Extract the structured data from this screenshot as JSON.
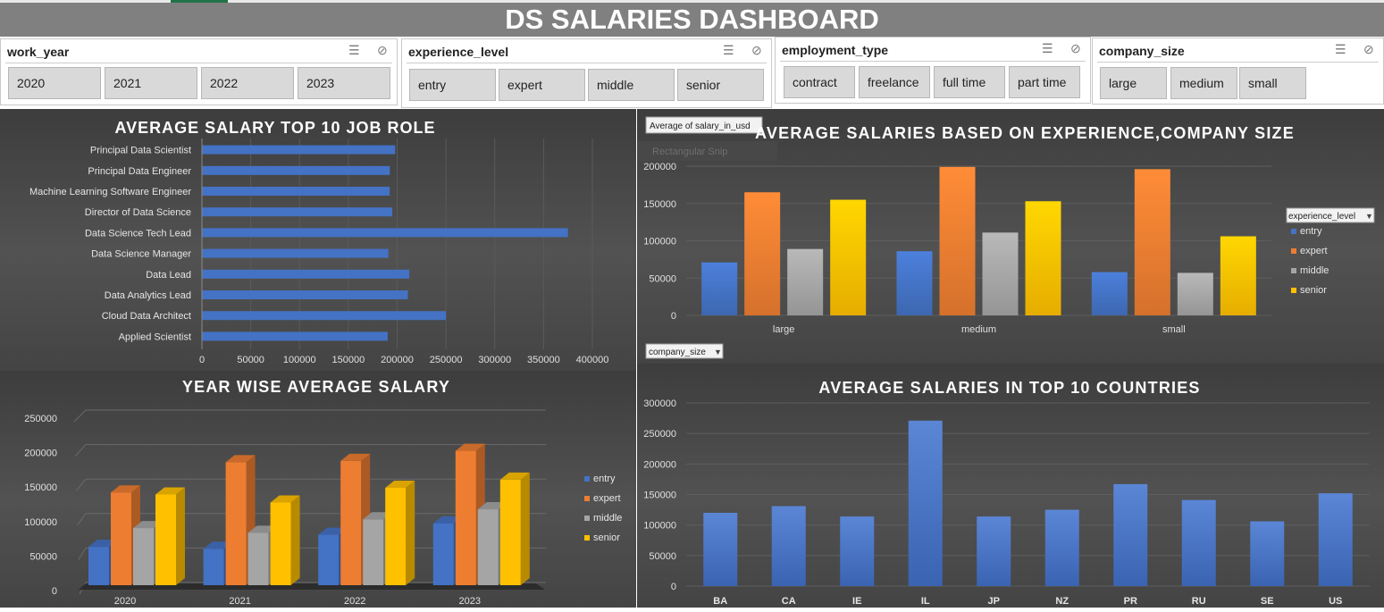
{
  "dashboard_title": "DS SALARIES DASHBOARD",
  "slicers": [
    {
      "name": "work_year",
      "items": [
        "2020",
        "2021",
        "2022",
        "2023"
      ]
    },
    {
      "name": "experience_level",
      "items": [
        "entry",
        "expert",
        "middle",
        "senior"
      ]
    },
    {
      "name": "employment_type",
      "items": [
        "contract",
        "freelance",
        "full time",
        "part time"
      ]
    },
    {
      "name": "company_size",
      "items": [
        "large",
        "medium",
        "small"
      ]
    }
  ],
  "pivot_field_buttons": {
    "values": "Average of salary_in_usd",
    "legend": "experience_level",
    "axis": "company_size"
  },
  "snip_tooltip": "Rectangular Snip",
  "colors": {
    "entry": "#4472c4",
    "expert": "#ed7d31",
    "middle": "#a5a5a5",
    "senior": "#ffc000"
  },
  "chart_data": [
    {
      "type": "bar",
      "orientation": "horizontal",
      "title": "AVERAGE  SALARY TOP 10 JOB ROLE",
      "categories": [
        "Principal Data Scientist",
        "Principal Data Engineer",
        "Machine Learning Software Engineer",
        "Director of Data Science",
        "Data Science Tech Lead",
        "Data Science Manager",
        "Data Lead",
        "Data Analytics Lead",
        "Cloud Data Architect",
        "Applied Scientist"
      ],
      "values": [
        198000,
        192500,
        192400,
        195000,
        375000,
        191000,
        212500,
        211000,
        250000,
        190300
      ],
      "xlim": [
        0,
        400000
      ],
      "xticks": [
        "0",
        "50000",
        "100000",
        "150000",
        "200000",
        "250000",
        "300000",
        "350000",
        "400000"
      ]
    },
    {
      "type": "bar",
      "title": "AVERAGE SALARIES BASED ON EXPERIENCE,COMPANY SIZE",
      "categories": [
        "large",
        "medium",
        "small"
      ],
      "series": [
        {
          "name": "entry",
          "values": [
            71000,
            86000,
            58000
          ]
        },
        {
          "name": "expert",
          "values": [
            165000,
            199000,
            196000
          ]
        },
        {
          "name": "middle",
          "values": [
            89000,
            111000,
            57000
          ]
        },
        {
          "name": "senior",
          "values": [
            155000,
            153000,
            106000
          ]
        }
      ],
      "ylim": [
        0,
        200000
      ],
      "yticks": [
        "0",
        "50000",
        "100000",
        "150000",
        "200000"
      ],
      "legend": "right"
    },
    {
      "type": "bar",
      "style": "3d",
      "title": "YEAR WISE AVERAGE SALARY",
      "categories": [
        "2020",
        "2021",
        "2022",
        "2023"
      ],
      "series": [
        {
          "name": "entry",
          "values": [
            57000,
            54000,
            75000,
            92000
          ]
        },
        {
          "name": "expert",
          "values": [
            138000,
            183000,
            185000,
            200000
          ]
        },
        {
          "name": "middle",
          "values": [
            85000,
            78000,
            98000,
            113000
          ]
        },
        {
          "name": "senior",
          "values": [
            135000,
            123000,
            145000,
            157000
          ]
        }
      ],
      "ylim": [
        0,
        250000
      ],
      "yticks": [
        "0",
        "50000",
        "100000",
        "150000",
        "200000",
        "250000"
      ],
      "legend": "right"
    },
    {
      "type": "bar",
      "title": "AVERAGE SALARIES IN TOP 10 COUNTRIES",
      "categories": [
        "BA",
        "CA",
        "IE",
        "IL",
        "JP",
        "NZ",
        "PR",
        "RU",
        "SE",
        "US"
      ],
      "values": [
        120000,
        131000,
        114000,
        271000,
        114000,
        125000,
        167000,
        141000,
        106000,
        152000
      ],
      "ylim": [
        0,
        300000
      ],
      "yticks": [
        "0",
        "50000",
        "100000",
        "150000",
        "200000",
        "250000",
        "300000"
      ]
    }
  ]
}
